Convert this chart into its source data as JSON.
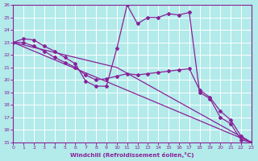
{
  "background_color": "#b3eaea",
  "grid_color": "#ffffff",
  "line_color": "#882299",
  "xlabel": "Windchill (Refroidissement éolien,°C)",
  "xlim": [
    0,
    23
  ],
  "ylim": [
    15,
    26
  ],
  "yticks": [
    15,
    16,
    17,
    18,
    19,
    20,
    21,
    22,
    23,
    24,
    25,
    26
  ],
  "xticks": [
    0,
    1,
    2,
    3,
    4,
    5,
    6,
    7,
    8,
    9,
    10,
    11,
    12,
    13,
    14,
    15,
    16,
    17,
    18,
    19,
    20,
    21,
    22,
    23
  ],
  "curve1_x": [
    0,
    1,
    2,
    3,
    4,
    5,
    6,
    7,
    8,
    9,
    10,
    11,
    12,
    13,
    14,
    15,
    16,
    17,
    18,
    19,
    20,
    21,
    22,
    23
  ],
  "curve1_y": [
    23.0,
    23.3,
    23.2,
    22.7,
    22.3,
    21.8,
    21.3,
    19.9,
    19.5,
    19.5,
    22.5,
    26.0,
    24.5,
    25.0,
    25.0,
    25.3,
    25.2,
    25.4,
    19.0,
    18.5,
    17.0,
    16.5,
    15.2,
    15.0
  ],
  "curve2_x": [
    0,
    1,
    2,
    3,
    4,
    5,
    6,
    7,
    8,
    9,
    10,
    11,
    12,
    13,
    14,
    15,
    16,
    17,
    18,
    19,
    20,
    21,
    22,
    23
  ],
  "curve2_y": [
    23.0,
    23.0,
    22.7,
    22.3,
    21.8,
    21.4,
    21.0,
    20.4,
    20.0,
    20.1,
    20.3,
    20.5,
    20.4,
    20.5,
    20.6,
    20.7,
    20.8,
    20.9,
    19.2,
    18.6,
    17.5,
    16.8,
    15.5,
    15.0
  ],
  "line3_x": [
    0,
    23
  ],
  "line3_y": [
    23.0,
    15.0
  ],
  "line4_x": [
    0,
    10,
    23
  ],
  "line4_y": [
    23.0,
    21.0,
    15.0
  ]
}
